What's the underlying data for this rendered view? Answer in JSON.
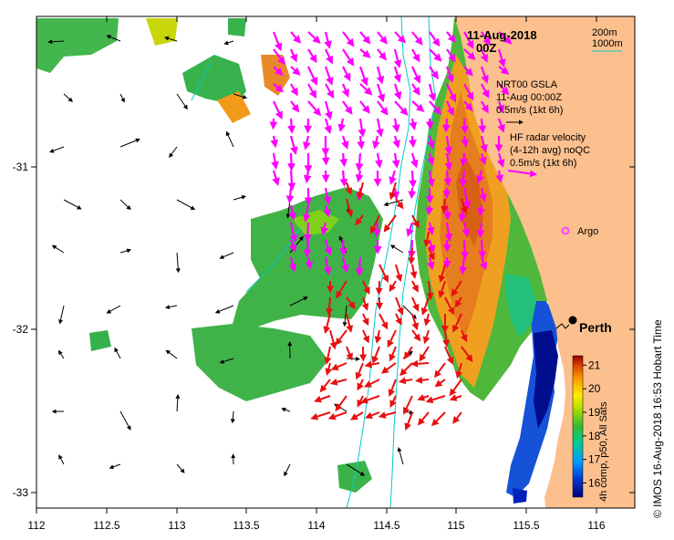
{
  "header": {
    "date": "11-Aug-2018",
    "time": "00Z"
  },
  "bathymetry_legend": {
    "line1": "200m",
    "line2": "1000m"
  },
  "gsla_legend": {
    "title": "NRT00 GSLA",
    "time": "11-Aug 00:00Z",
    "scale": "0.5m/s (1kt 6h)"
  },
  "hf_legend": {
    "title": "HF radar velocity",
    "avg": "(4-12h avg) noQC",
    "scale": "0.5m/s (1kt 6h)"
  },
  "argo": {
    "label": "Argo",
    "color": "#ff44ff"
  },
  "city": {
    "name": "Perth"
  },
  "colorbar": {
    "title": "4h comp, p50, All Sats",
    "ticks": [
      "21",
      "20",
      "19",
      "18",
      "17",
      "16"
    ],
    "range": [
      15.4,
      21.4
    ]
  },
  "credit": "© IMOS 16-Aug-2018 16:53 Hobart Time",
  "axes": {
    "x_ticks": [
      "112",
      "112.5",
      "113",
      "113.5",
      "114",
      "114.5",
      "115",
      "115.5",
      "116"
    ],
    "y_ticks": [
      "-31",
      "-32",
      "-33"
    ],
    "xlim": [
      112,
      116.3
    ],
    "ylim": [
      -33.05,
      -30.0
    ]
  },
  "colors": {
    "land": "#fcc08e",
    "hf_arrow": "#ff00ff",
    "gsla_arrow": "#000000",
    "red_arrow": "#e81010",
    "isobath": "#00cccc"
  }
}
